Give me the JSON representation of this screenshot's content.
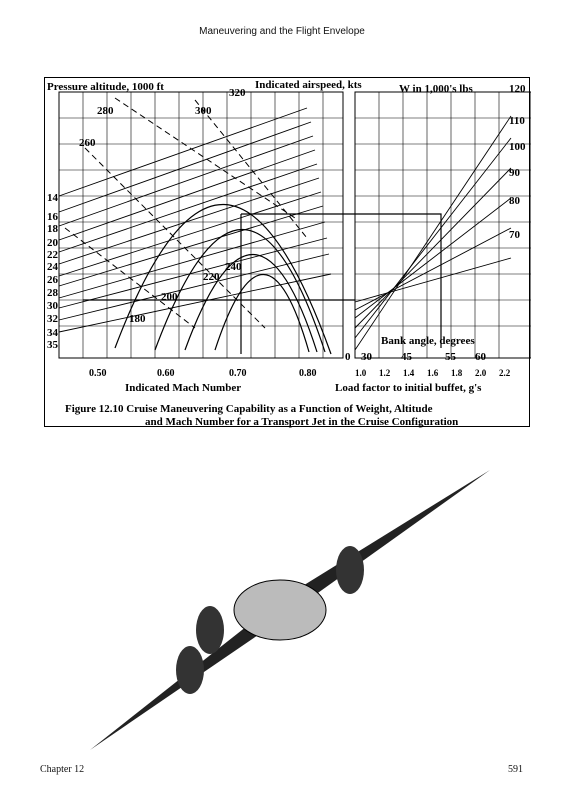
{
  "header": {
    "running_title": "Maneuvering and the Flight Envelope"
  },
  "figure": {
    "left_title": "Pressure altitude, 1000 ft",
    "ias_title": "Indicated airspeed, kts",
    "ias_marker": "320",
    "weight_title": "W in 1,000's lbs",
    "weight_top": "120",
    "weight_labels": [
      "110",
      "100",
      "90",
      "80",
      "70"
    ],
    "altitude_ticks": [
      "14",
      "16",
      "18",
      "20",
      "22",
      "24",
      "26",
      "28",
      "30",
      "32",
      "34",
      "35"
    ],
    "ias_labels": [
      "280",
      "300",
      "260",
      "240",
      "220",
      "200",
      "180"
    ],
    "mach_ticks": [
      "0.50",
      "0.60",
      "0.70",
      "0.80"
    ],
    "mach_label": "Indicated Mach Number",
    "load_ticks": [
      "1.0",
      "1.2",
      "1.4",
      "1.6",
      "1.8",
      "2.0",
      "2.2"
    ],
    "load_label": "Load factor to initial buffet, g's",
    "bank_title": "Bank angle, degrees",
    "bank_ticks": [
      "0",
      "30",
      "45",
      "55",
      "60"
    ],
    "caption_line1": "Figure 12.10  Cruise Maneuvering Capability as a Function of Weight, Altitude",
    "caption_line2": "and Mach Number for a Transport Jet in the Cruise Configuration"
  },
  "footer": {
    "chapter": "Chapter 12",
    "page_number": "591"
  }
}
